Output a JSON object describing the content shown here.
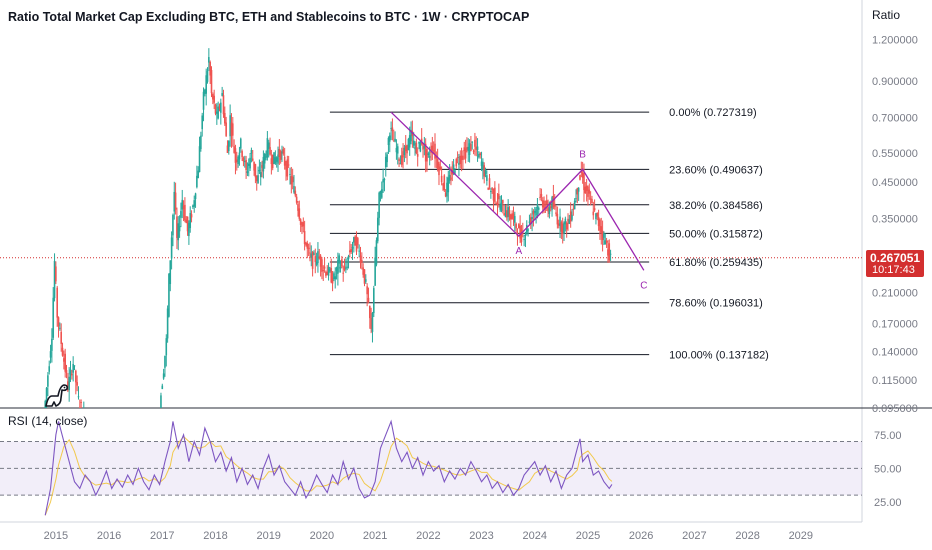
{
  "chart_data": [
    {
      "type": "candlestick",
      "title": "Ratio Total Market Cap Excluding BTC, ETH and Stablecoins to BTC · 1W · CRYPTOCAP",
      "scale_mode": "Ratio",
      "y_scale": "log",
      "ylim": [
        0.095,
        1.28
      ],
      "xlim": [
        2014.0,
        2030.2
      ],
      "y_ticks": [
        "1.200000",
        "0.900000",
        "0.700000",
        "0.550000",
        "0.450000",
        "0.350000",
        "0.270000",
        "0.210000",
        "0.170000",
        "0.140000",
        "0.115000",
        "0.095000"
      ],
      "x_ticks": [
        "2015",
        "2016",
        "2017",
        "2018",
        "2019",
        "2020",
        "2021",
        "2022",
        "2023",
        "2024",
        "2025",
        "2026",
        "2027",
        "2028",
        "2029"
      ],
      "last_price": "0.267051",
      "countdown": "10:17:43",
      "colors": {
        "up": "#26a69a",
        "down": "#ef5350",
        "fib": "#131722",
        "pattern": "#9c27b0",
        "price_line": "#d32f2f"
      },
      "price_path": [
        [
          2014.85,
          0.09
        ],
        [
          2015.0,
          0.16
        ],
        [
          2015.05,
          0.26
        ],
        [
          2015.1,
          0.18
        ],
        [
          2015.2,
          0.14
        ],
        [
          2015.3,
          0.11
        ],
        [
          2015.4,
          0.13
        ],
        [
          2015.5,
          0.1
        ],
        [
          2015.6,
          0.09
        ],
        [
          2017.0,
          0.088
        ],
        [
          2017.15,
          0.15
        ],
        [
          2017.2,
          0.23
        ],
        [
          2017.3,
          0.42
        ],
        [
          2017.35,
          0.3
        ],
        [
          2017.45,
          0.4
        ],
        [
          2017.55,
          0.32
        ],
        [
          2017.65,
          0.38
        ],
        [
          2017.75,
          0.5
        ],
        [
          2017.85,
          0.8
        ],
        [
          2017.95,
          1.05
        ],
        [
          2018.0,
          0.82
        ],
        [
          2018.1,
          0.7
        ],
        [
          2018.2,
          0.82
        ],
        [
          2018.3,
          0.55
        ],
        [
          2018.35,
          0.7
        ],
        [
          2018.45,
          0.52
        ],
        [
          2018.55,
          0.58
        ],
        [
          2018.65,
          0.48
        ],
        [
          2018.75,
          0.55
        ],
        [
          2018.85,
          0.45
        ],
        [
          2018.95,
          0.5
        ],
        [
          2019.05,
          0.58
        ],
        [
          2019.15,
          0.52
        ],
        [
          2019.3,
          0.55
        ],
        [
          2019.45,
          0.48
        ],
        [
          2019.6,
          0.4
        ],
        [
          2019.7,
          0.33
        ],
        [
          2019.8,
          0.28
        ],
        [
          2019.9,
          0.26
        ],
        [
          2020.0,
          0.27
        ],
        [
          2020.1,
          0.25
        ],
        [
          2020.2,
          0.24
        ],
        [
          2020.3,
          0.23
        ],
        [
          2020.4,
          0.26
        ],
        [
          2020.5,
          0.24
        ],
        [
          2020.6,
          0.28
        ],
        [
          2020.7,
          0.3
        ],
        [
          2020.8,
          0.27
        ],
        [
          2020.9,
          0.22
        ],
        [
          2021.0,
          0.16
        ],
        [
          2021.05,
          0.22
        ],
        [
          2021.1,
          0.3
        ],
        [
          2021.15,
          0.4
        ],
        [
          2021.25,
          0.48
        ],
        [
          2021.35,
          0.65
        ],
        [
          2021.45,
          0.58
        ],
        [
          2021.55,
          0.52
        ],
        [
          2021.65,
          0.56
        ],
        [
          2021.75,
          0.62
        ],
        [
          2021.85,
          0.55
        ],
        [
          2021.95,
          0.6
        ],
        [
          2022.05,
          0.52
        ],
        [
          2022.15,
          0.58
        ],
        [
          2022.3,
          0.48
        ],
        [
          2022.4,
          0.42
        ],
        [
          2022.5,
          0.47
        ],
        [
          2022.6,
          0.52
        ],
        [
          2022.75,
          0.55
        ],
        [
          2022.9,
          0.58
        ],
        [
          2023.0,
          0.55
        ],
        [
          2023.1,
          0.5
        ],
        [
          2023.2,
          0.44
        ],
        [
          2023.35,
          0.4
        ],
        [
          2023.5,
          0.37
        ],
        [
          2023.6,
          0.36
        ],
        [
          2023.7,
          0.34
        ],
        [
          2023.8,
          0.31
        ],
        [
          2023.9,
          0.32
        ],
        [
          2024.0,
          0.35
        ],
        [
          2024.1,
          0.38
        ],
        [
          2024.2,
          0.4
        ],
        [
          2024.3,
          0.37
        ],
        [
          2024.4,
          0.39
        ],
        [
          2024.5,
          0.35
        ],
        [
          2024.6,
          0.33
        ],
        [
          2024.7,
          0.34
        ],
        [
          2024.8,
          0.38
        ],
        [
          2024.9,
          0.45
        ],
        [
          2024.95,
          0.48
        ],
        [
          2025.0,
          0.44
        ],
        [
          2025.1,
          0.4
        ],
        [
          2025.2,
          0.36
        ],
        [
          2025.3,
          0.33
        ],
        [
          2025.4,
          0.3
        ],
        [
          2025.5,
          0.267
        ]
      ],
      "fib_levels": [
        {
          "label": "0.00% (0.727319)",
          "value": 0.727319
        },
        {
          "label": "23.60% (0.490637)",
          "value": 0.490637
        },
        {
          "label": "38.20% (0.384586)",
          "value": 0.384586
        },
        {
          "label": "50.00% (0.315872)",
          "value": 0.315872
        },
        {
          "label": "61.80% (0.259435)",
          "value": 0.259435
        },
        {
          "label": "78.60% (0.196031)",
          "value": 0.196031
        },
        {
          "label": "100.00% (0.137182)",
          "value": 0.137182
        }
      ],
      "fib_range": [
        2020.2,
        2026.2
      ],
      "abc_pattern": [
        {
          "x": 2021.35,
          "y": 0.727319,
          "label": ""
        },
        {
          "x": 2023.75,
          "y": 0.31,
          "label": "A"
        },
        {
          "x": 2024.95,
          "y": 0.490637,
          "label": "B"
        },
        {
          "x": 2026.1,
          "y": 0.245,
          "label": "C"
        }
      ]
    },
    {
      "type": "line",
      "title": "RSI (14, close)",
      "ylim": [
        10,
        95
      ],
      "y_ticks": [
        "75.00",
        "50.00",
        "25.00"
      ],
      "band": [
        30,
        70
      ],
      "series": [
        {
          "values": [
            [
              2014.85,
              15
            ],
            [
              2014.95,
              35
            ],
            [
              2015.05,
              75
            ],
            [
              2015.1,
              85
            ],
            [
              2015.2,
              70
            ],
            [
              2015.3,
              55
            ],
            [
              2015.4,
              40
            ],
            [
              2015.5,
              35
            ],
            [
              2015.6,
              45
            ],
            [
              2015.7,
              40
            ],
            [
              2015.8,
              30
            ],
            [
              2015.9,
              38
            ],
            [
              2016.0,
              48
            ],
            [
              2016.1,
              35
            ],
            [
              2016.2,
              42
            ],
            [
              2016.3,
              36
            ],
            [
              2016.4,
              45
            ],
            [
              2016.5,
              38
            ],
            [
              2016.6,
              50
            ],
            [
              2016.7,
              40
            ],
            [
              2016.8,
              34
            ],
            [
              2016.9,
              45
            ],
            [
              2017.0,
              38
            ],
            [
              2017.1,
              55
            ],
            [
              2017.2,
              70
            ],
            [
              2017.25,
              85
            ],
            [
              2017.35,
              65
            ],
            [
              2017.45,
              75
            ],
            [
              2017.55,
              55
            ],
            [
              2017.65,
              70
            ],
            [
              2017.75,
              60
            ],
            [
              2017.85,
              80
            ],
            [
              2017.95,
              70
            ],
            [
              2018.05,
              55
            ],
            [
              2018.15,
              62
            ],
            [
              2018.25,
              48
            ],
            [
              2018.35,
              58
            ],
            [
              2018.45,
              40
            ],
            [
              2018.55,
              50
            ],
            [
              2018.65,
              38
            ],
            [
              2018.75,
              45
            ],
            [
              2018.85,
              35
            ],
            [
              2018.95,
              50
            ],
            [
              2019.05,
              60
            ],
            [
              2019.15,
              45
            ],
            [
              2019.25,
              52
            ],
            [
              2019.35,
              40
            ],
            [
              2019.45,
              35
            ],
            [
              2019.55,
              30
            ],
            [
              2019.65,
              40
            ],
            [
              2019.75,
              28
            ],
            [
              2019.85,
              35
            ],
            [
              2019.95,
              45
            ],
            [
              2020.05,
              38
            ],
            [
              2020.15,
              32
            ],
            [
              2020.25,
              45
            ],
            [
              2020.35,
              38
            ],
            [
              2020.45,
              55
            ],
            [
              2020.55,
              42
            ],
            [
              2020.65,
              50
            ],
            [
              2020.75,
              35
            ],
            [
              2020.85,
              28
            ],
            [
              2020.95,
              30
            ],
            [
              2021.05,
              40
            ],
            [
              2021.15,
              65
            ],
            [
              2021.25,
              75
            ],
            [
              2021.35,
              85
            ],
            [
              2021.45,
              65
            ],
            [
              2021.55,
              55
            ],
            [
              2021.65,
              62
            ],
            [
              2021.75,
              50
            ],
            [
              2021.85,
              58
            ],
            [
              2021.95,
              45
            ],
            [
              2022.05,
              55
            ],
            [
              2022.15,
              48
            ],
            [
              2022.25,
              52
            ],
            [
              2022.35,
              40
            ],
            [
              2022.45,
              48
            ],
            [
              2022.55,
              42
            ],
            [
              2022.65,
              50
            ],
            [
              2022.75,
              45
            ],
            [
              2022.85,
              55
            ],
            [
              2022.95,
              48
            ],
            [
              2023.05,
              40
            ],
            [
              2023.15,
              45
            ],
            [
              2023.25,
              35
            ],
            [
              2023.35,
              40
            ],
            [
              2023.45,
              32
            ],
            [
              2023.55,
              38
            ],
            [
              2023.65,
              30
            ],
            [
              2023.75,
              35
            ],
            [
              2023.85,
              45
            ],
            [
              2023.95,
              50
            ],
            [
              2024.05,
              55
            ],
            [
              2024.15,
              45
            ],
            [
              2024.25,
              52
            ],
            [
              2024.35,
              40
            ],
            [
              2024.45,
              48
            ],
            [
              2024.55,
              35
            ],
            [
              2024.65,
              45
            ],
            [
              2024.75,
              50
            ],
            [
              2024.85,
              65
            ],
            [
              2024.9,
              72
            ],
            [
              2024.95,
              55
            ],
            [
              2025.05,
              60
            ],
            [
              2025.15,
              45
            ],
            [
              2025.25,
              48
            ],
            [
              2025.35,
              40
            ],
            [
              2025.45,
              35
            ],
            [
              2025.5,
              38
            ]
          ]
        }
      ]
    }
  ]
}
